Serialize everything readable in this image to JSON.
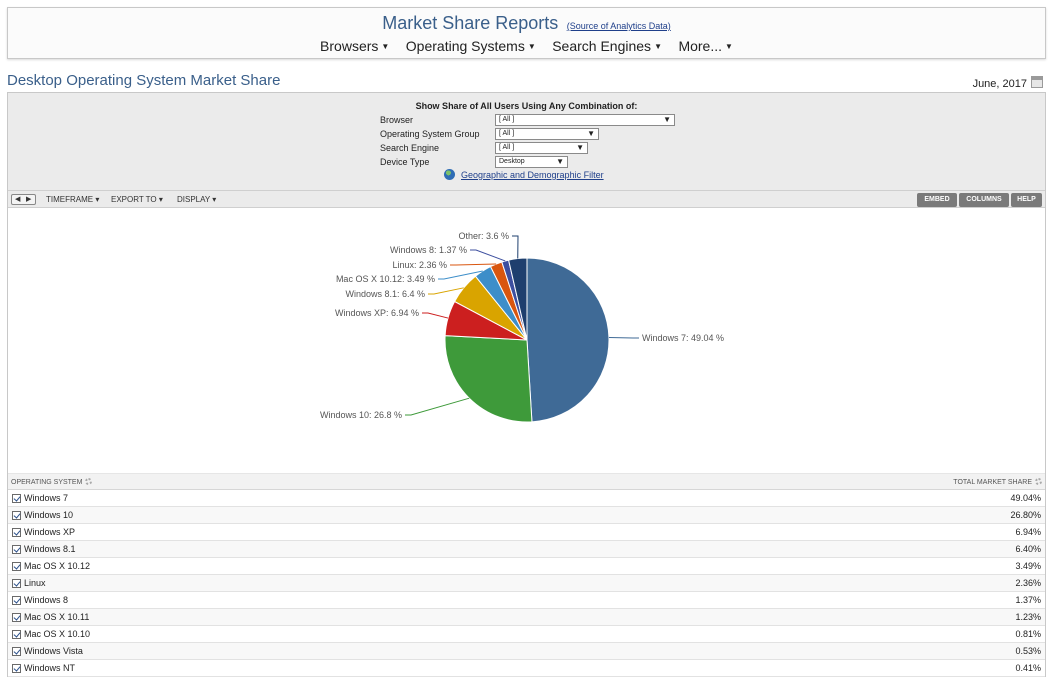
{
  "header": {
    "title": "Market Share Reports",
    "source_link": "(Source of Analytics Data)",
    "nav": [
      {
        "label": "Browsers"
      },
      {
        "label": "Operating Systems"
      },
      {
        "label": "Search Engines"
      },
      {
        "label": "More..."
      }
    ]
  },
  "page": {
    "title": "Desktop Operating System Market Share",
    "date": "June, 2017"
  },
  "filters": {
    "heading": "Show Share of All Users Using Any Combination of:",
    "fields": [
      {
        "label": "Browser",
        "value": "[ All ]"
      },
      {
        "label": "Operating System Group",
        "value": "[ All ]"
      },
      {
        "label": "Search Engine",
        "value": "[ All ]"
      },
      {
        "label": "Device Type",
        "value": "Desktop"
      }
    ],
    "geo_link": "Geographic and Demographic Filter"
  },
  "toolbar": {
    "timeframe": "TIMEFRAME",
    "export": "EXPORT TO",
    "display": "DISPLAY",
    "embed": "EMBED",
    "columns": "COLUMNS",
    "help": "HELP"
  },
  "chart_data": {
    "type": "pie",
    "title": "",
    "slices": [
      {
        "label": "Windows 7",
        "value": 49.04,
        "color": "#3f6a96"
      },
      {
        "label": "Windows 10",
        "value": 26.8,
        "color": "#3e9a3a"
      },
      {
        "label": "Windows XP",
        "value": 6.94,
        "color": "#cc1f1f"
      },
      {
        "label": "Windows 8.1",
        "value": 6.4,
        "color": "#d9a400"
      },
      {
        "label": "Mac OS X 10.12",
        "value": 3.49,
        "color": "#3d8ec9"
      },
      {
        "label": "Linux",
        "value": 2.36,
        "color": "#d9560f"
      },
      {
        "label": "Windows 8",
        "value": 1.37,
        "color": "#3d4f9f"
      },
      {
        "label": "Other",
        "value": 3.6,
        "color": "#1e3f6e"
      }
    ],
    "data_labels": [
      "Windows 7: 49.04 %",
      "Windows 10: 26.8 %",
      "Windows XP: 6.94 %",
      "Windows 8.1: 6.4 %",
      "Mac OS X 10.12: 3.49 %",
      "Linux: 2.36 %",
      "Windows 8: 1.37 %",
      "Other: 3.6 %"
    ]
  },
  "table": {
    "col_os": "OPERATING SYSTEM",
    "col_share": "TOTAL MARKET SHARE",
    "rows": [
      {
        "name": "Windows 7",
        "value": "49.04%"
      },
      {
        "name": "Windows 10",
        "value": "26.80%"
      },
      {
        "name": "Windows XP",
        "value": "6.94%"
      },
      {
        "name": "Windows 8.1",
        "value": "6.40%"
      },
      {
        "name": "Mac OS X 10.12",
        "value": "3.49%"
      },
      {
        "name": "Linux",
        "value": "2.36%"
      },
      {
        "name": "Windows 8",
        "value": "1.37%"
      },
      {
        "name": "Mac OS X 10.11",
        "value": "1.23%"
      },
      {
        "name": "Mac OS X 10.10",
        "value": "0.81%"
      },
      {
        "name": "Windows Vista",
        "value": "0.53%"
      },
      {
        "name": "Windows NT",
        "value": "0.41%"
      }
    ]
  }
}
